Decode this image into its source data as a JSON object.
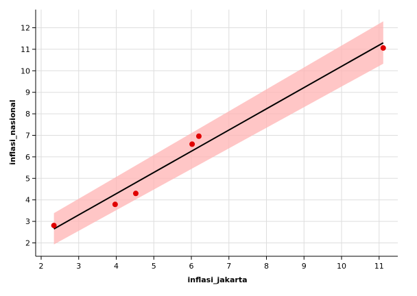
{
  "chart_data": {
    "type": "scatter",
    "xlabel": "inflasi_jakarta",
    "ylabel": "inflasi_nasional",
    "xlim": [
      1.9,
      11.5
    ],
    "ylim": [
      1.4,
      12.6
    ],
    "xticks": [
      2,
      3,
      4,
      5,
      6,
      7,
      8,
      9,
      10,
      11
    ],
    "yticks": [
      2,
      3,
      4,
      5,
      6,
      7,
      8,
      9,
      10,
      11,
      12
    ],
    "grid": true,
    "points": [
      {
        "x": 2.34,
        "y": 2.81
      },
      {
        "x": 3.97,
        "y": 3.79
      },
      {
        "x": 4.52,
        "y": 4.3
      },
      {
        "x": 6.02,
        "y": 6.59
      },
      {
        "x": 6.2,
        "y": 6.96
      },
      {
        "x": 11.11,
        "y": 11.06
      }
    ],
    "regression_line": {
      "x": [
        2.34,
        11.11
      ],
      "y": [
        2.65,
        11.3
      ]
    },
    "confidence_band": {
      "x": [
        2.34,
        11.11
      ],
      "upper": [
        3.38,
        12.3
      ],
      "lower": [
        1.93,
        10.33
      ]
    },
    "colors": {
      "points": "#e00000",
      "line": "#000000",
      "band": "#ffb3b3",
      "grid": "#dddddd"
    }
  }
}
